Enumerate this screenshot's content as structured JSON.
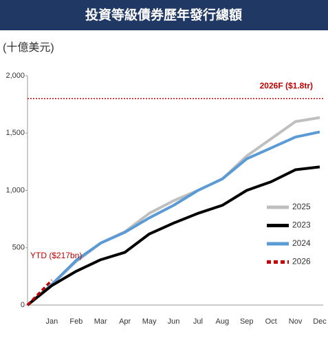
{
  "chart_data": {
    "type": "line",
    "title": "投資等級債券歷年發行總額",
    "subtitle": "(十億美元)",
    "categories": [
      null,
      "Jan",
      "Feb",
      "Mar",
      "Apr",
      "May",
      "Jun",
      "Jul",
      "Aug",
      "Sep",
      "Oct",
      "Nov",
      "Dec"
    ],
    "series": [
      {
        "name": "2025",
        "color": "#bfbfbf",
        "dash": false,
        "values": [
          0,
          180,
          380,
          540,
          640,
          800,
          910,
          1000,
          1100,
          1300,
          1450,
          1600,
          1635
        ]
      },
      {
        "name": "2023",
        "color": "#000000",
        "dash": false,
        "values": [
          0,
          170,
          295,
          395,
          460,
          620,
          715,
          800,
          870,
          1000,
          1075,
          1180,
          1205
        ]
      },
      {
        "name": "2024",
        "color": "#5b9bd5",
        "dash": false,
        "values": [
          0,
          180,
          390,
          540,
          635,
          760,
          870,
          1000,
          1100,
          1275,
          1370,
          1465,
          1510
        ]
      },
      {
        "name": "2026",
        "color": "#c00000",
        "dash": true,
        "values": [
          0,
          217,
          null,
          null,
          null,
          null,
          null,
          null,
          null,
          null,
          null,
          null,
          null
        ]
      }
    ],
    "ylim": [
      0,
      2000
    ],
    "yticks": [
      0,
      500,
      {
        "value": 1000,
        "label": "1,000"
      },
      {
        "value": 1500,
        "label": "1,500"
      },
      {
        "value": 2000,
        "label": "2,000"
      }
    ],
    "reference_line": {
      "value": 1800,
      "label": "2026F ($1.8tr)",
      "color": "#c00000"
    },
    "annotation": "YTD ($217bn)"
  }
}
